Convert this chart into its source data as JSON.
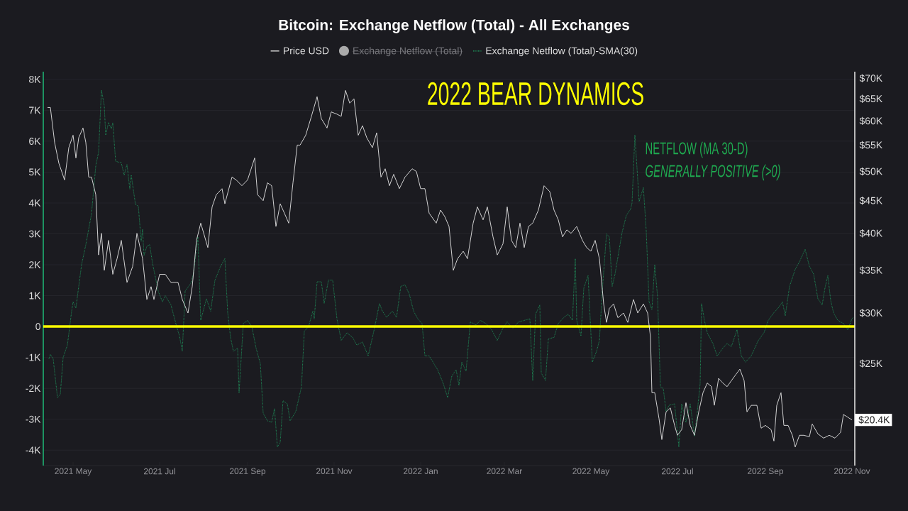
{
  "chart_data": {
    "type": "line",
    "title": "Bitcoin: Exchange Netflow (Total) - All Exchanges",
    "legend": "top",
    "grid": "y",
    "log": "y2",
    "xlim": [
      "2021-04-10",
      "2022-11-03"
    ],
    "xticks": [
      {
        "value": "2021-05-01",
        "label": "2021 May"
      },
      {
        "value": "2021-07-01",
        "label": "2021 Jul"
      },
      {
        "value": "2021-09-01",
        "label": "2021 Sep"
      },
      {
        "value": "2021-11-01",
        "label": "2021 Nov"
      },
      {
        "value": "2022-01-01",
        "label": "2022 Jan"
      },
      {
        "value": "2022-03-01",
        "label": "2022 Mar"
      },
      {
        "value": "2022-05-01",
        "label": "2022 May"
      },
      {
        "value": "2022-07-01",
        "label": "2022 Jul"
      },
      {
        "value": "2022-09-01",
        "label": "2022 Sep"
      },
      {
        "value": "2022-11-01",
        "label": "2022 Nov"
      }
    ],
    "ylim": [
      -4500,
      8250
    ],
    "yticks": [
      {
        "value": -4000,
        "label": "-4K"
      },
      {
        "value": -3000,
        "label": "-3K"
      },
      {
        "value": -2000,
        "label": "-2K"
      },
      {
        "value": -1000,
        "label": "-1K"
      },
      0,
      {
        "value": 1000,
        "label": "1K"
      },
      {
        "value": 2000,
        "label": "2K"
      },
      {
        "value": 3000,
        "label": "3K"
      },
      {
        "value": 4000,
        "label": "4K"
      },
      {
        "value": 5000,
        "label": "5K"
      },
      {
        "value": 6000,
        "label": "6K"
      },
      {
        "value": 7000,
        "label": "7K"
      },
      {
        "value": 8000,
        "label": "8K"
      }
    ],
    "y2lim": [
      17300,
      71700
    ],
    "y2ticks": [
      {
        "value": 25000,
        "label": "$25K"
      },
      {
        "value": 30000,
        "label": "$30K"
      },
      {
        "value": 35000,
        "label": "$35K"
      },
      {
        "value": 40000,
        "label": "$40K"
      },
      {
        "value": 45000,
        "label": "$45K"
      },
      {
        "value": 50000,
        "label": "$50K"
      },
      {
        "value": 55000,
        "label": "$55K"
      },
      {
        "value": 60000,
        "label": "$60K"
      },
      {
        "value": 65000,
        "label": "$65K"
      },
      {
        "value": 70000,
        "label": "$70K"
      }
    ],
    "ref_lines": [
      {
        "axis": "y",
        "value": 0,
        "color": "#ffff00"
      }
    ],
    "annotations": [
      "Exchange Netflow (Total)",
      "2022 BEAR DYNAMICS",
      "NETFLOW (MA 30-D)",
      "GENERALLY POSITIVE (>0)",
      "$20.4K"
    ],
    "series": [
      {
        "name": "Price USD",
        "color": "#e6e6e6",
        "axis": "y2",
        "line_style": "solid",
        "x": [
          "2021-04-13",
          "2021-04-15",
          "2021-04-18",
          "2021-04-21",
          "2021-04-25",
          "2021-04-28",
          "2021-05-01",
          "2021-05-03",
          "2021-05-05",
          "2021-05-08",
          "2021-05-10",
          "2021-05-12",
          "2021-05-14",
          "2021-05-17",
          "2021-05-19",
          "2021-05-21",
          "2021-05-23",
          "2021-05-26",
          "2021-05-29",
          "2021-06-01",
          "2021-06-04",
          "2021-06-08",
          "2021-06-12",
          "2021-06-15",
          "2021-06-19",
          "2021-06-22",
          "2021-06-25",
          "2021-06-27",
          "2021-07-01",
          "2021-07-05",
          "2021-07-09",
          "2021-07-14",
          "2021-07-17",
          "2021-07-21",
          "2021-07-24",
          "2021-07-27",
          "2021-07-30",
          "2021-08-04",
          "2021-08-07",
          "2021-08-10",
          "2021-08-14",
          "2021-08-16",
          "2021-08-21",
          "2021-08-24",
          "2021-08-28",
          "2021-09-01",
          "2021-09-06",
          "2021-09-08",
          "2021-09-12",
          "2021-09-15",
          "2021-09-18",
          "2021-09-21",
          "2021-09-24",
          "2021-09-27",
          "2021-09-30",
          "2021-10-03",
          "2021-10-06",
          "2021-10-08",
          "2021-10-12",
          "2021-10-16",
          "2021-10-20",
          "2021-10-23",
          "2021-10-27",
          "2021-10-30",
          "2021-11-03",
          "2021-11-06",
          "2021-11-09",
          "2021-11-12",
          "2021-11-15",
          "2021-11-18",
          "2021-11-21",
          "2021-11-24",
          "2021-11-28",
          "2021-12-01",
          "2021-12-04",
          "2021-12-07",
          "2021-12-10",
          "2021-12-13",
          "2021-12-17",
          "2021-12-21",
          "2021-12-26",
          "2021-12-29",
          "2022-01-01",
          "2022-01-04",
          "2022-01-07",
          "2022-01-12",
          "2022-01-15",
          "2022-01-18",
          "2022-01-21",
          "2022-01-24",
          "2022-01-27",
          "2022-01-31",
          "2022-02-03",
          "2022-02-07",
          "2022-02-10",
          "2022-02-14",
          "2022-02-17",
          "2022-02-21",
          "2022-02-24",
          "2022-02-28",
          "2022-03-03",
          "2022-03-06",
          "2022-03-09",
          "2022-03-12",
          "2022-03-15",
          "2022-03-18",
          "2022-03-21",
          "2022-03-25",
          "2022-03-29",
          "2022-04-02",
          "2022-04-05",
          "2022-04-08",
          "2022-04-11",
          "2022-04-14",
          "2022-04-17",
          "2022-04-21",
          "2022-04-25",
          "2022-04-28",
          "2022-05-01",
          "2022-05-04",
          "2022-05-07",
          "2022-05-10",
          "2022-05-12",
          "2022-05-14",
          "2022-05-17",
          "2022-05-20",
          "2022-05-24",
          "2022-05-27",
          "2022-05-31",
          "2022-06-03",
          "2022-06-07",
          "2022-06-10",
          "2022-06-12",
          "2022-06-13",
          "2022-06-15",
          "2022-06-18",
          "2022-06-20",
          "2022-06-23",
          "2022-06-26",
          "2022-06-29",
          "2022-07-01",
          "2022-07-04",
          "2022-07-07",
          "2022-07-10",
          "2022-07-13",
          "2022-07-16",
          "2022-07-19",
          "2022-07-22",
          "2022-07-25",
          "2022-07-27",
          "2022-07-30",
          "2022-08-02",
          "2022-08-05",
          "2022-08-08",
          "2022-08-11",
          "2022-08-14",
          "2022-08-17",
          "2022-08-19",
          "2022-08-22",
          "2022-08-26",
          "2022-08-29",
          "2022-09-01",
          "2022-09-05",
          "2022-09-07",
          "2022-09-09",
          "2022-09-12",
          "2022-09-14",
          "2022-09-17",
          "2022-09-20",
          "2022-09-22",
          "2022-09-25",
          "2022-09-28",
          "2022-10-02",
          "2022-10-04",
          "2022-10-08",
          "2022-10-12",
          "2022-10-16",
          "2022-10-20",
          "2022-10-24",
          "2022-10-26",
          "2022-10-29",
          "2022-11-01"
        ],
        "values": [
          63000,
          63000,
          55500,
          51500,
          48500,
          54500,
          57000,
          52500,
          56500,
          58500,
          55500,
          49000,
          49000,
          46000,
          37000,
          40000,
          35000,
          39000,
          34500,
          36500,
          39000,
          33500,
          35500,
          40000,
          36500,
          31500,
          33000,
          31500,
          34500,
          34500,
          33500,
          33500,
          31500,
          30000,
          33000,
          39000,
          41500,
          38000,
          44000,
          46000,
          47000,
          44500,
          49000,
          48500,
          47500,
          48500,
          52500,
          46000,
          45000,
          48000,
          47500,
          41000,
          44500,
          43000,
          41500,
          48000,
          55000,
          55000,
          57000,
          61000,
          65500,
          60500,
          58500,
          62000,
          61500,
          61000,
          67000,
          64000,
          65000,
          57000,
          59000,
          56500,
          54500,
          57500,
          49000,
          50500,
          47500,
          49500,
          47000,
          49000,
          50500,
          50000,
          47000,
          47000,
          43000,
          41500,
          43500,
          42500,
          41000,
          35000,
          36500,
          37500,
          36500,
          41500,
          44000,
          42000,
          44000,
          39500,
          37000,
          38500,
          44000,
          39000,
          38000,
          41500,
          38000,
          41000,
          41500,
          43500,
          47500,
          46500,
          43500,
          42000,
          39500,
          40500,
          40000,
          41000,
          39000,
          38000,
          37500,
          39000,
          36500,
          31000,
          29000,
          30500,
          31000,
          29500,
          30000,
          29000,
          31500,
          30000,
          31000,
          30000,
          27500,
          22500,
          22500,
          20500,
          19000,
          21000,
          21300,
          20000,
          19300,
          19700,
          21700,
          20000,
          19300,
          21000,
          22500,
          23300,
          23000,
          21500,
          23700,
          23300,
          23000,
          23500,
          24000,
          24500,
          23500,
          21000,
          21500,
          21500,
          19800,
          20000,
          19700,
          18900,
          21500,
          22500,
          20000,
          20000,
          19300,
          18500,
          19300,
          19300,
          19200,
          20100,
          19400,
          19100,
          19300,
          19100,
          19500,
          20800,
          20600,
          20400
        ]
      },
      {
        "name": "Exchange Netflow (Total)-SMA(30)",
        "color": "#1fa363",
        "axis": "y",
        "line_style": "dotted",
        "x": [
          "2021-04-14",
          "2021-04-15",
          "2021-04-17",
          "2021-04-20",
          "2021-04-22",
          "2021-04-24",
          "2021-04-27",
          "2021-04-30",
          "2021-05-01",
          "2021-05-03",
          "2021-05-07",
          "2021-05-10",
          "2021-05-14",
          "2021-05-17",
          "2021-05-19",
          "2021-05-21",
          "2021-05-23",
          "2021-05-24",
          "2021-05-26",
          "2021-05-28",
          "2021-05-29",
          "2021-05-31",
          "2021-06-04",
          "2021-06-06",
          "2021-06-08",
          "2021-06-10",
          "2021-06-11",
          "2021-06-14",
          "2021-06-16",
          "2021-06-18",
          "2021-06-19",
          "2021-06-20",
          "2021-06-22",
          "2021-06-24",
          "2021-06-26",
          "2021-06-30",
          "2021-07-03",
          "2021-07-05",
          "2021-07-09",
          "2021-07-13",
          "2021-07-15",
          "2021-07-17",
          "2021-07-19",
          "2021-07-23",
          "2021-07-25",
          "2021-07-28",
          "2021-07-30",
          "2021-08-03",
          "2021-08-06",
          "2021-08-09",
          "2021-08-13",
          "2021-08-16",
          "2021-08-18",
          "2021-08-20",
          "2021-08-22",
          "2021-08-25",
          "2021-08-26",
          "2021-08-29",
          "2021-09-01",
          "2021-09-04",
          "2021-09-07",
          "2021-09-10",
          "2021-09-12",
          "2021-09-15",
          "2021-09-18",
          "2021-09-20",
          "2021-09-22",
          "2021-09-24",
          "2021-09-26",
          "2021-09-29",
          "2021-10-01",
          "2021-10-05",
          "2021-10-09",
          "2021-10-11",
          "2021-10-14",
          "2021-10-17",
          "2021-10-18",
          "2021-10-20",
          "2021-10-23",
          "2021-10-25",
          "2021-10-28",
          "2021-10-31",
          "2021-11-03",
          "2021-11-06",
          "2021-11-10",
          "2021-11-14",
          "2021-11-17",
          "2021-11-21",
          "2021-11-25",
          "2021-11-29",
          "2021-12-03",
          "2021-12-05",
          "2021-12-08",
          "2021-12-12",
          "2021-12-15",
          "2021-12-18",
          "2021-12-21",
          "2021-12-24",
          "2021-12-27",
          "2021-12-30",
          "2022-01-02",
          "2022-01-04",
          "2022-01-07",
          "2022-01-11",
          "2022-01-13",
          "2022-01-17",
          "2022-01-20",
          "2022-01-23",
          "2022-01-26",
          "2022-01-28",
          "2022-01-30",
          "2022-02-02",
          "2022-02-05",
          "2022-02-09",
          "2022-02-12",
          "2022-02-16",
          "2022-02-20",
          "2022-02-24",
          "2022-02-28",
          "2022-03-03",
          "2022-03-07",
          "2022-03-11",
          "2022-03-15",
          "2022-03-19",
          "2022-03-21",
          "2022-03-23",
          "2022-03-26",
          "2022-03-27",
          "2022-03-30",
          "2022-04-01",
          "2022-04-05",
          "2022-04-08",
          "2022-04-12",
          "2022-04-15",
          "2022-04-18",
          "2022-04-20",
          "2022-04-21",
          "2022-04-24",
          "2022-04-26",
          "2022-04-29",
          "2022-05-02",
          "2022-05-05",
          "2022-05-07",
          "2022-05-09",
          "2022-05-12",
          "2022-05-14",
          "2022-05-16",
          "2022-05-18",
          "2022-05-23",
          "2022-05-26",
          "2022-05-29",
          "2022-05-30",
          "2022-06-01",
          "2022-06-04",
          "2022-06-07",
          "2022-06-09",
          "2022-06-11",
          "2022-06-13",
          "2022-06-15",
          "2022-06-17",
          "2022-06-19",
          "2022-06-21",
          "2022-06-23",
          "2022-06-25",
          "2022-06-29",
          "2022-07-02",
          "2022-07-04",
          "2022-07-07",
          "2022-07-10",
          "2022-07-13",
          "2022-07-15",
          "2022-07-17",
          "2022-07-18",
          "2022-07-20",
          "2022-07-22",
          "2022-07-26",
          "2022-07-29",
          "2022-08-02",
          "2022-08-05",
          "2022-08-08",
          "2022-08-12",
          "2022-08-15",
          "2022-08-18",
          "2022-08-22",
          "2022-08-27",
          "2022-08-31",
          "2022-09-03",
          "2022-09-07",
          "2022-09-10",
          "2022-09-13",
          "2022-09-15",
          "2022-09-18",
          "2022-09-22",
          "2022-09-25",
          "2022-09-29",
          "2022-10-02",
          "2022-10-05",
          "2022-10-08",
          "2022-10-11",
          "2022-10-13",
          "2022-10-15",
          "2022-10-17",
          "2022-10-19",
          "2022-10-22",
          "2022-10-26",
          "2022-10-29",
          "2022-11-01",
          "2022-11-02"
        ],
        "values": [
          -1050,
          -900,
          -1050,
          -2300,
          -2200,
          -1000,
          -600,
          500,
          800,
          600,
          2000,
          2650,
          3650,
          5200,
          5650,
          7650,
          7150,
          6200,
          6600,
          6400,
          6600,
          5350,
          5300,
          4900,
          5250,
          4450,
          4900,
          3950,
          3900,
          2750,
          3150,
          2300,
          2600,
          2650,
          2050,
          1150,
          800,
          1000,
          700,
          0,
          -300,
          -800,
          1150,
          1400,
          1750,
          2900,
          200,
          900,
          500,
          1500,
          1950,
          2200,
          450,
          -350,
          -800,
          -700,
          -2150,
          100,
          200,
          0,
          -700,
          -1200,
          -2800,
          -3050,
          -3100,
          -2650,
          -3900,
          -3750,
          -2400,
          -2500,
          -3050,
          -2750,
          -1950,
          -150,
          0,
          500,
          250,
          1450,
          1450,
          750,
          1500,
          1500,
          250,
          -450,
          -200,
          -350,
          -600,
          -500,
          -950,
          -150,
          750,
          500,
          300,
          500,
          300,
          1300,
          1350,
          1050,
          500,
          250,
          100,
          -950,
          -950,
          -1250,
          -1400,
          -1850,
          -2300,
          -1600,
          -1400,
          -1900,
          -1150,
          -1450,
          150,
          50,
          200,
          100,
          -100,
          -450,
          -50,
          150,
          -50,
          150,
          200,
          250,
          -1750,
          400,
          700,
          -1500,
          -1750,
          -400,
          -350,
          100,
          300,
          400,
          200,
          2200,
          200,
          -300,
          1250,
          1650,
          -1150,
          -800,
          -450,
          1150,
          3000,
          2900,
          1300,
          1700,
          3050,
          3600,
          3800,
          4000,
          6200,
          4050,
          4500,
          3100,
          800,
          550,
          2000,
          950,
          -1950,
          -2000,
          -2750,
          -2550,
          -2500,
          -3900,
          -2500,
          -3100,
          -2500,
          -3550,
          -2750,
          -1850,
          750,
          200,
          -200,
          -550,
          -950,
          -700,
          -550,
          -650,
          -100,
          -950,
          -1150,
          -950,
          -450,
          -200,
          200,
          450,
          600,
          800,
          350,
          1300,
          1850,
          2100,
          2500,
          1950,
          1700,
          900,
          700,
          1250,
          1650,
          850,
          450,
          200,
          100,
          -100,
          250,
          300
        ]
      }
    ]
  }
}
